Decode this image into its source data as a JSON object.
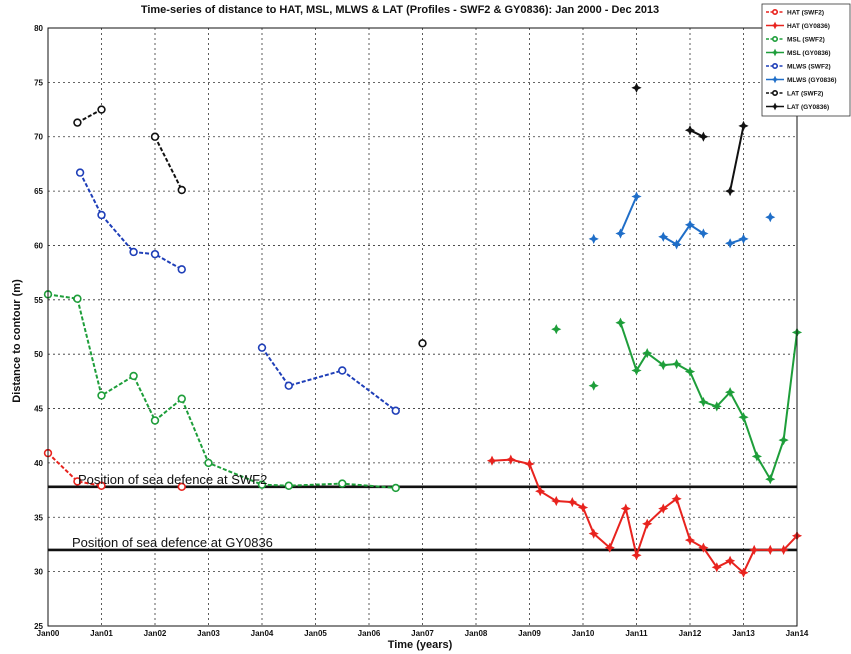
{
  "chart_data": {
    "type": "line",
    "title": "Time-series of distance to HAT, MSL, MLWS & LAT (Profiles - SWF2 & GY0836): Jan 2000 - Dec 2013",
    "xlabel": "Time (years)",
    "ylabel": "Distance to contour (m)",
    "xlim": [
      2000.0,
      2014.0
    ],
    "ylim": [
      25,
      80
    ],
    "grid": true,
    "legend_position": "top-right",
    "x_tick_labels": [
      "Jan00",
      "Jan01",
      "Jan02",
      "Jan03",
      "Jan04",
      "Jan05",
      "Jan06",
      "Jan07",
      "Jan08",
      "Jan09",
      "Jan10",
      "Jan11",
      "Jan12",
      "Jan13",
      "Jan14"
    ],
    "y_ticks": [
      25,
      30,
      35,
      40,
      45,
      50,
      55,
      60,
      65,
      70,
      75,
      80
    ],
    "annotations": [
      {
        "text": "Position of sea defence at SWF2",
        "y": 37.8
      },
      {
        "text": "Position of sea defence at GY0836",
        "y": 32.0
      }
    ],
    "series": [
      {
        "name": "HAT (SWF2)",
        "color": "#e8231e",
        "dash": true,
        "marker": "circle",
        "segments": [
          [
            [
              2000.0,
              40.9
            ],
            [
              2000.55,
              38.3
            ],
            [
              2001.0,
              37.9
            ]
          ],
          [
            [
              2002.5,
              37.8
            ]
          ]
        ]
      },
      {
        "name": "HAT (GY0836)",
        "color": "#e8231e",
        "dash": false,
        "marker": "star",
        "segments": [
          [
            [
              2008.3,
              40.2
            ],
            [
              2008.65,
              40.3
            ],
            [
              2009.0,
              39.9
            ],
            [
              2009.2,
              37.4
            ],
            [
              2009.5,
              36.5
            ],
            [
              2009.8,
              36.4
            ],
            [
              2010.0,
              35.9
            ],
            [
              2010.2,
              33.5
            ],
            [
              2010.5,
              32.2
            ],
            [
              2010.8,
              35.8
            ],
            [
              2011.0,
              31.5
            ],
            [
              2011.2,
              34.4
            ],
            [
              2011.5,
              35.8
            ],
            [
              2011.75,
              36.7
            ],
            [
              2012.0,
              32.9
            ],
            [
              2012.25,
              32.2
            ],
            [
              2012.5,
              30.4
            ],
            [
              2012.75,
              31.0
            ],
            [
              2013.0,
              29.9
            ],
            [
              2013.2,
              32.0
            ],
            [
              2013.5,
              32.0
            ],
            [
              2013.75,
              32.0
            ],
            [
              2014.0,
              33.3
            ]
          ]
        ]
      },
      {
        "name": "MSL (SWF2)",
        "color": "#1e9e3a",
        "dash": true,
        "marker": "circle",
        "segments": [
          [
            [
              2000.0,
              55.5
            ],
            [
              2000.55,
              55.1
            ],
            [
              2001.0,
              46.2
            ],
            [
              2001.6,
              48.0
            ],
            [
              2002.0,
              43.9
            ],
            [
              2002.5,
              45.9
            ],
            [
              2003.0,
              40.0
            ],
            [
              2004.0,
              38.0
            ],
            [
              2004.5,
              37.9
            ],
            [
              2005.5,
              38.1
            ],
            [
              2006.5,
              37.7
            ]
          ]
        ]
      },
      {
        "name": "MSL (GY0836)",
        "color": "#1e9e3a",
        "dash": false,
        "marker": "star",
        "segments": [
          [
            [
              2009.5,
              52.3
            ]
          ],
          [
            [
              2010.2,
              47.1
            ]
          ],
          [
            [
              2010.7,
              52.9
            ],
            [
              2011.0,
              48.5
            ],
            [
              2011.2,
              50.1
            ],
            [
              2011.5,
              49.0
            ],
            [
              2011.75,
              49.1
            ],
            [
              2012.0,
              48.4
            ],
            [
              2012.25,
              45.6
            ],
            [
              2012.5,
              45.2
            ],
            [
              2012.75,
              46.5
            ],
            [
              2013.0,
              44.2
            ],
            [
              2013.25,
              40.6
            ],
            [
              2013.5,
              38.5
            ],
            [
              2013.75,
              42.1
            ],
            [
              2014.0,
              52.0
            ]
          ]
        ]
      },
      {
        "name": "MLWS (SWF2)",
        "color": "#1f3fb8",
        "dash": true,
        "marker": "circle",
        "segments": [
          [
            [
              2000.6,
              66.7
            ],
            [
              2001.0,
              62.8
            ],
            [
              2001.6,
              59.4
            ],
            [
              2002.0,
              59.2
            ],
            [
              2002.5,
              57.8
            ]
          ],
          [
            [
              2004.0,
              50.6
            ],
            [
              2004.5,
              47.1
            ],
            [
              2005.5,
              48.5
            ],
            [
              2006.5,
              44.8
            ]
          ]
        ]
      },
      {
        "name": "MLWS (GY0836)",
        "color": "#1f6ec8",
        "dash": false,
        "marker": "star",
        "segments": [
          [
            [
              2010.2,
              60.6
            ]
          ],
          [
            [
              2010.7,
              61.1
            ],
            [
              2011.0,
              64.5
            ]
          ],
          [
            [
              2011.5,
              60.8
            ],
            [
              2011.75,
              60.1
            ],
            [
              2012.0,
              61.9
            ],
            [
              2012.25,
              61.1
            ]
          ],
          [
            [
              2012.75,
              60.2
            ],
            [
              2013.0,
              60.6
            ]
          ],
          [
            [
              2013.5,
              62.6
            ]
          ]
        ]
      },
      {
        "name": "LAT (SWF2)",
        "color": "#111111",
        "dash": true,
        "marker": "circle",
        "segments": [
          [
            [
              2000.55,
              71.3
            ],
            [
              2001.0,
              72.5
            ]
          ],
          [
            [
              2002.0,
              70.0
            ],
            [
              2002.5,
              65.1
            ]
          ],
          [
            [
              2007.0,
              51.0
            ]
          ]
        ]
      },
      {
        "name": "LAT (GY0836)",
        "color": "#111111",
        "dash": false,
        "marker": "star",
        "segments": [
          [
            [
              2011.0,
              74.5
            ]
          ],
          [
            [
              2012.0,
              70.6
            ],
            [
              2012.25,
              70.0
            ]
          ],
          [
            [
              2012.75,
              65.0
            ],
            [
              2013.0,
              71.0
            ]
          ]
        ]
      }
    ]
  }
}
